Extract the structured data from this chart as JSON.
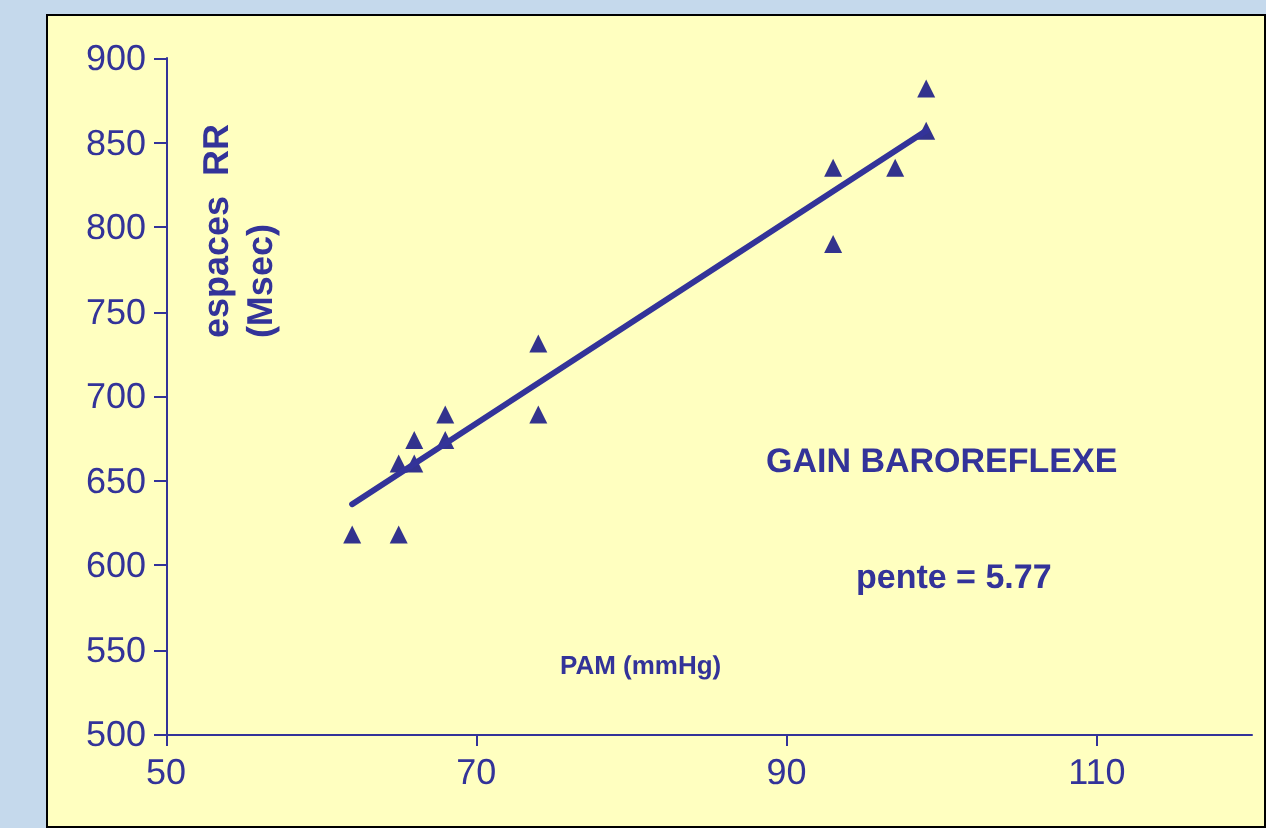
{
  "chart_data": {
    "type": "scatter",
    "xlabel": "PAM (mmHg)",
    "ylabel": "espaces  RR\n(Msec)",
    "annotations": [
      "GAIN BAROREFLEXE",
      "pente = 5.77"
    ],
    "xlim": [
      50,
      120
    ],
    "xticks": [
      50,
      70,
      90,
      110
    ],
    "ylim": [
      500,
      900
    ],
    "yticks": [
      500,
      550,
      600,
      650,
      700,
      750,
      800,
      850,
      900
    ],
    "grid": false,
    "marker": "triangle",
    "series": [
      {
        "color": "#000080",
        "x": [
          62,
          65,
          65,
          66,
          66,
          68,
          68,
          74,
          74,
          93,
          93,
          97,
          99,
          99
        ],
        "values": [
          618,
          618,
          660,
          660,
          674,
          674,
          689,
          689,
          731,
          835,
          790,
          835,
          882,
          857
        ]
      },
      {
        "type": "line",
        "color": "#333399",
        "x": [
          62,
          99
        ],
        "values": [
          636,
          857
        ],
        "marker": "none",
        "line_style": "solid"
      }
    ]
  }
}
